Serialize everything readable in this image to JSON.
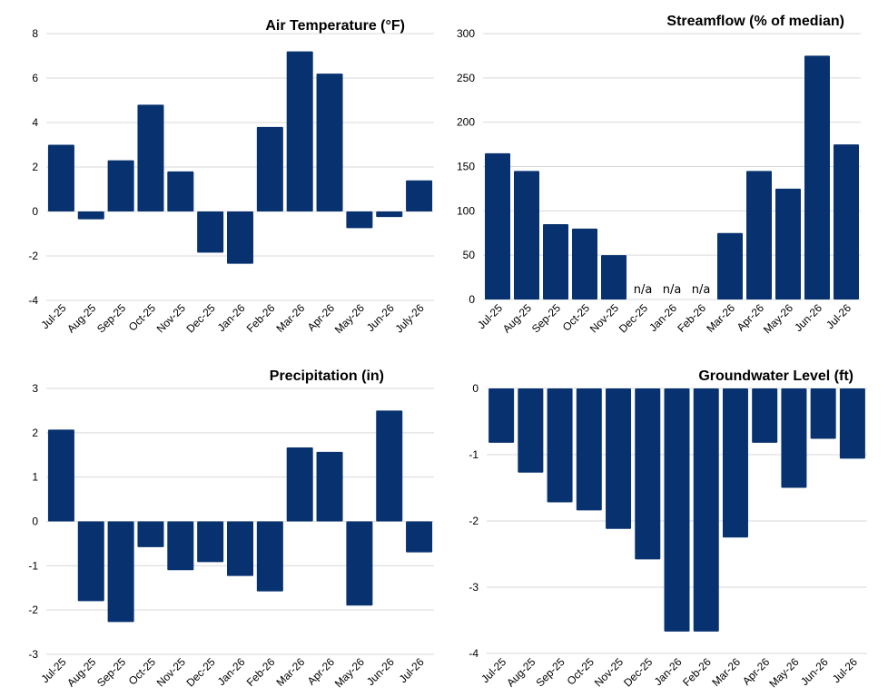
{
  "colors": {
    "bar": "#07316f",
    "grid": "#d9d9d9"
  },
  "chart_data": [
    {
      "type": "bar",
      "title": "Air Temperature  (°F)",
      "categories": [
        "Jul-25",
        "Aug-25",
        "Sep-25",
        "Oct-25",
        "Nov-25",
        "Dec-25",
        "Jan-26",
        "Feb-26",
        "Mar-26",
        "Apr-26",
        "May-26",
        "Jun-26",
        "July-26"
      ],
      "values": [
        3.0,
        -0.35,
        2.3,
        4.8,
        1.8,
        -1.85,
        -2.35,
        3.8,
        7.2,
        6.2,
        -0.75,
        -0.25,
        1.4
      ],
      "ylim": [
        -4,
        8
      ],
      "yticks": [
        "-4",
        "-2",
        "0",
        "2",
        "4",
        "6",
        "8"
      ],
      "grid": true
    },
    {
      "type": "bar",
      "title": "Streamflow (% of median)",
      "categories": [
        "Jul-25",
        "Aug-25",
        "Sep-25",
        "Oct-25",
        "Nov-25",
        "Dec-25",
        "Jan-26",
        "Feb-26",
        "Mar-26",
        "Apr-26",
        "May-26",
        "Jun-26",
        "Jul-26"
      ],
      "values": [
        165,
        145,
        85,
        80,
        50,
        null,
        null,
        null,
        75,
        145,
        125,
        275,
        175
      ],
      "value_labels": [
        "",
        "",
        "",
        "",
        "",
        "n/a",
        "n/a",
        "n/a",
        "",
        "",
        "",
        "",
        ""
      ],
      "ylim": [
        0,
        300
      ],
      "yticks": [
        "0",
        "50",
        "100",
        "150",
        "200",
        "250",
        "300"
      ],
      "grid": true
    },
    {
      "type": "bar",
      "title": "Precipitation (in)",
      "categories": [
        "Jul-25",
        "Aug-25",
        "Sep-25",
        "Oct-25",
        "Nov-25",
        "Dec-25",
        "Jan-26",
        "Feb-26",
        "Mar-26",
        "Apr-26",
        "May-26",
        "Jun-26",
        "Jul-26"
      ],
      "values": [
        2.07,
        -1.8,
        -2.27,
        -0.58,
        -1.1,
        -0.92,
        -1.23,
        -1.58,
        1.67,
        1.57,
        -1.9,
        2.5,
        -0.7
      ],
      "ylim": [
        -3,
        3
      ],
      "yticks": [
        "-3",
        "-2",
        "-1",
        "0",
        "1",
        "2",
        "3"
      ],
      "grid": true
    },
    {
      "type": "bar",
      "title": "Groundwater Level (ft)",
      "categories": [
        "Jul-25",
        "Aug-25",
        "Sep-25",
        "Oct-25",
        "Nov-25",
        "Dec-25",
        "Jan-26",
        "Feb-26",
        "Mar-26",
        "Apr-26",
        "May-26",
        "Jun-26",
        "Jul-26"
      ],
      "values": [
        -0.82,
        -1.27,
        -1.72,
        -1.84,
        -2.12,
        -2.58,
        -3.67,
        -3.67,
        -2.25,
        -0.82,
        -1.5,
        -0.76,
        -1.06
      ],
      "ylim": [
        -4,
        0
      ],
      "yticks": [
        "-4",
        "-3",
        "-2",
        "-1",
        "0"
      ],
      "grid": true
    }
  ]
}
